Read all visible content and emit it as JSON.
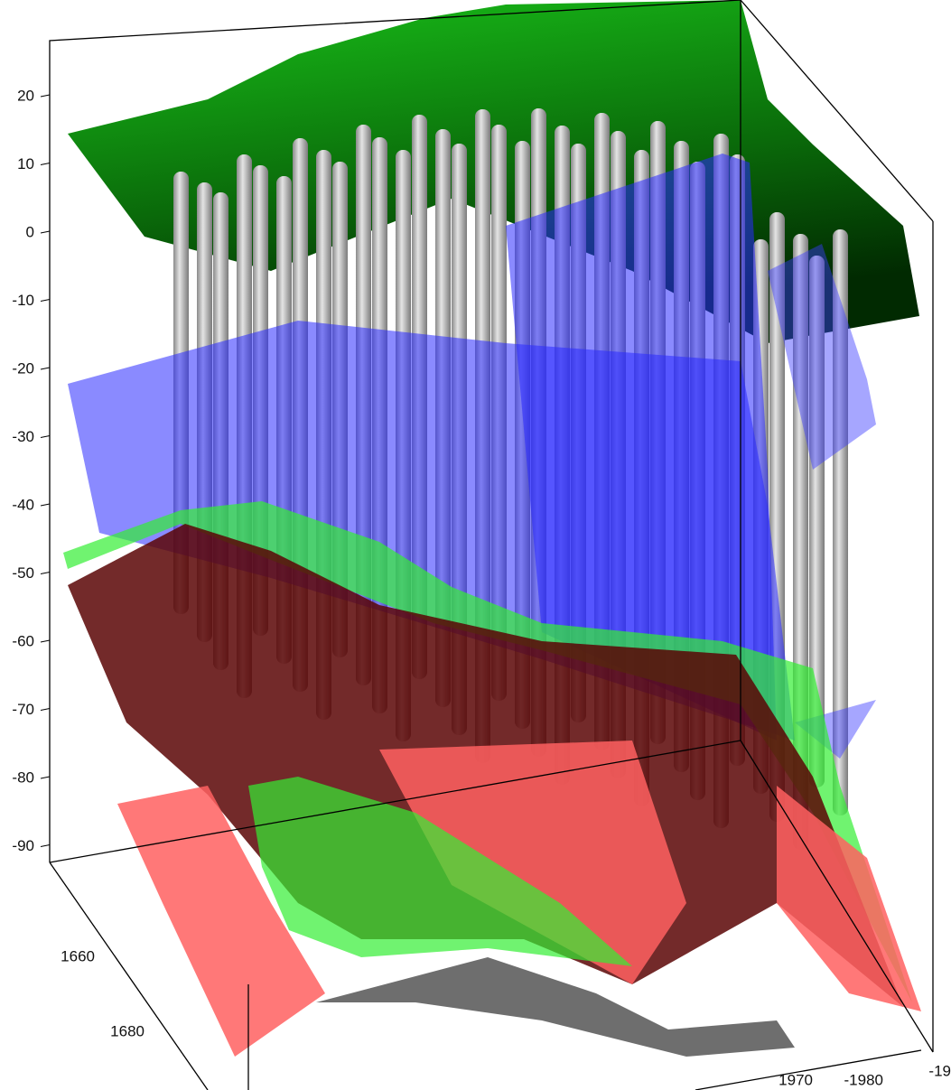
{
  "z_axis": {
    "ticks": [
      "20",
      "10",
      "0",
      "-10",
      "-20",
      "-30",
      "-40",
      "-50",
      "-60",
      "-70",
      "-80",
      "-90"
    ]
  },
  "x_axis": {
    "ticks": [
      "1660",
      "1680"
    ]
  },
  "y_axis": {
    "ticks": [
      "1970",
      "-1980",
      "-19"
    ]
  }
}
